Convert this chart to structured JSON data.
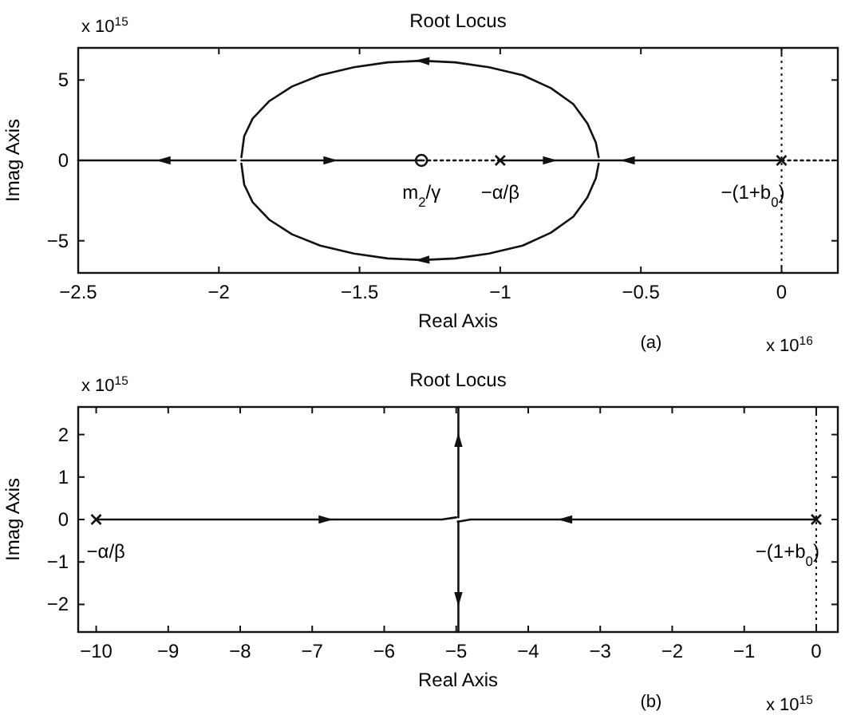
{
  "chart_data": [
    {
      "type": "line",
      "title": "Root Locus",
      "xlabel": "Real Axis",
      "ylabel": "Imag Axis",
      "xlim": [
        -2.5,
        0.2
      ],
      "ylim": [
        -7,
        7
      ],
      "xticks": [
        -2.5,
        -2,
        -1.5,
        -1,
        -0.5,
        0
      ],
      "yticks": [
        -5,
        0,
        5
      ],
      "grid": false,
      "marker": "none",
      "series": [
        {
          "color": "#111111",
          "x": [
            -0.65,
            -0.66,
            -0.69,
            -0.74,
            -0.82,
            -0.92,
            -1.04,
            -1.16,
            -1.28,
            -1.4,
            -1.52,
            -1.64,
            -1.74,
            -1.82,
            -1.88,
            -1.91,
            -1.92
          ],
          "values": [
            0.2,
            1.1,
            2.3,
            3.5,
            4.5,
            5.3,
            5.8,
            6.1,
            6.2,
            6.1,
            5.8,
            5.3,
            4.6,
            3.7,
            2.6,
            1.5,
            0.2
          ]
        },
        {
          "color": "#111111",
          "x": [
            -0.65,
            -0.66,
            -0.69,
            -0.74,
            -0.82,
            -0.92,
            -1.04,
            -1.16,
            -1.28,
            -1.4,
            -1.52,
            -1.64,
            -1.74,
            -1.82,
            -1.88,
            -1.91,
            -1.92
          ],
          "values": [
            -0.2,
            -1.1,
            -2.3,
            -3.5,
            -4.5,
            -5.3,
            -5.8,
            -6.1,
            -6.2,
            -6.1,
            -5.8,
            -5.3,
            -4.6,
            -3.7,
            -2.6,
            -1.5,
            -0.2
          ]
        },
        {
          "color": "#111111",
          "x": [
            -1.94,
            -2.2,
            -2.5
          ],
          "values": [
            0,
            0,
            0
          ]
        },
        {
          "color": "#111111",
          "x": [
            -1.92,
            -1.6,
            -1.28
          ],
          "values": [
            0,
            0,
            0
          ]
        },
        {
          "color": "#111111",
          "x": [
            -1.0,
            -0.82,
            -0.65
          ],
          "values": [
            0,
            0,
            0
          ]
        },
        {
          "color": "#111111",
          "x": [
            0,
            -0.3,
            -0.55,
            -0.65
          ],
          "values": [
            0,
            0,
            0,
            0
          ]
        },
        {
          "color": "#111111",
          "x": [
            -1.28,
            -1.0
          ],
          "values": [
            0,
            0
          ],
          "line_style": "dotted"
        },
        {
          "color": "#111111",
          "x": [
            0,
            0.2
          ],
          "values": [
            0,
            0
          ],
          "line_style": "dotted"
        },
        {
          "type": "scatter",
          "color": "#111111",
          "marker": "cross",
          "x": [
            -1.0,
            0
          ],
          "values": [
            0,
            0
          ]
        },
        {
          "type": "scatter",
          "color": "#111111",
          "marker": "circle",
          "x": [
            -1.28
          ],
          "values": [
            0
          ]
        }
      ],
      "ref_lines": [
        {
          "axis": "x",
          "value": 0,
          "line_style": "dotted",
          "color": "#111111"
        }
      ],
      "annotations": [
        {
          "text": "m$_{2}$/γ",
          "x": -1.28,
          "y": 0
        },
        {
          "text": "−α/β",
          "x": -1.0,
          "y": 0
        },
        {
          "text": "−(1+b$_{0}$)",
          "x": 0,
          "y": 0
        },
        "x 10$^{15}$",
        "x 10$^{16}$",
        "(a)"
      ]
    },
    {
      "type": "line",
      "title": "Root Locus",
      "xlabel": "Real Axis",
      "ylabel": "Imag Axis",
      "xlim": [
        -10.25,
        0.3
      ],
      "ylim": [
        -2.65,
        2.65
      ],
      "xticks": [
        -10,
        -9,
        -8,
        -7,
        -6,
        -5,
        -4,
        -3,
        -2,
        -1,
        0
      ],
      "yticks": [
        -2,
        -1,
        0,
        1,
        2
      ],
      "grid": false,
      "marker": "none",
      "series": [
        {
          "color": "#111111",
          "x": [
            -10,
            -7.5,
            -6.8,
            -5.2,
            -5.0
          ],
          "values": [
            0,
            0,
            0,
            0,
            0.05
          ]
        },
        {
          "color": "#111111",
          "x": [
            0,
            -2.5,
            -3.5,
            -4.8,
            -4.98
          ],
          "values": [
            0,
            0,
            0,
            0,
            -0.05
          ]
        },
        {
          "color": "#111111",
          "x": [
            -4.97,
            -4.97,
            -4.97
          ],
          "values": [
            0.05,
            1.9,
            2.65
          ]
        },
        {
          "color": "#111111",
          "x": [
            -4.97,
            -4.97,
            -4.97
          ],
          "values": [
            -0.05,
            -1.9,
            -2.65
          ]
        },
        {
          "type": "scatter",
          "color": "#111111",
          "marker": "cross",
          "x": [
            -10,
            0
          ],
          "values": [
            0,
            0
          ]
        }
      ],
      "ref_lines": [
        {
          "axis": "x",
          "value": 0,
          "line_style": "dotted",
          "color": "#111111"
        }
      ],
      "annotations": [
        {
          "text": "−α/β",
          "x": -10,
          "y": 0
        },
        {
          "text": "−(1+b$_{0}$)",
          "x": 0,
          "y": 0
        },
        "x 10$^{15}$",
        "x 10$^{15}$",
        "(b)"
      ]
    }
  ]
}
